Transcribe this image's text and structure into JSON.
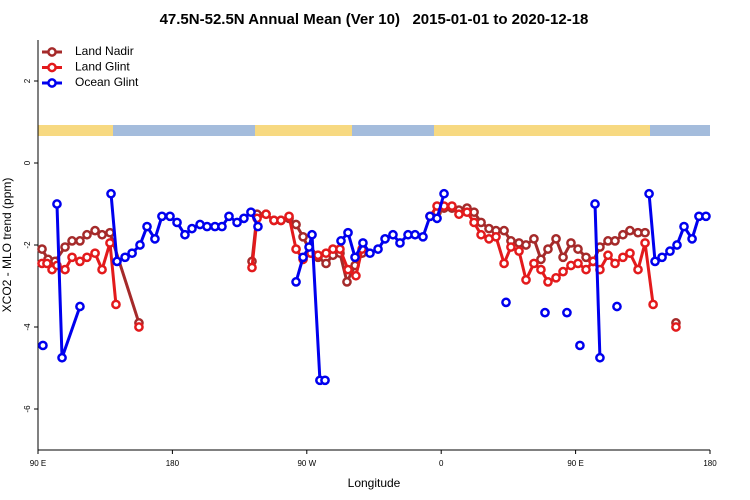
{
  "chart_data": {
    "type": "line",
    "title": "47.5N-52.5N Annual Mean (Ver 10)   2015-01-01 to 2020-12-18",
    "x_label": "Longitude",
    "y_label": "XCO2 - MLO trend (ppm)",
    "xlim": [
      90,
      540
    ],
    "xticks": [
      {
        "value": 90,
        "label": "90 E"
      },
      {
        "value": 180,
        "label": "180"
      },
      {
        "value": 270,
        "label": "90 W"
      },
      {
        "value": 360,
        "label": "0"
      },
      {
        "value": 450,
        "label": "90 E"
      },
      {
        "value": 540,
        "label": "180"
      }
    ],
    "ylim": [
      -7,
      3
    ],
    "yticks": [
      -6,
      -4,
      -2,
      0,
      2
    ],
    "legend": "upper left",
    "series": [
      {
        "name": "Land Nadir",
        "color": "#a52a2a",
        "x": [
          92.7,
          96.7,
          101.4,
          108.1,
          112.8,
          118.1,
          122.8,
          128.2,
          132.9,
          138.2,
          157.6,
          195,
          233.3,
          236.7,
          242.7,
          248.0,
          252.7,
          258.1,
          262.8,
          267.5,
          272.8,
          277.5,
          282.9,
          287.5,
          292.2,
          296.9,
          302.3,
          307.0,
          330,
          357.2,
          361.9,
          367.2,
          371.9,
          377.3,
          382.0,
          386.7,
          392.0,
          396.7,
          402.1,
          406.7,
          412.1,
          416.8,
          422.1,
          426.8,
          431.5,
          436.9,
          441.6,
          446.9,
          451.6,
          457.0,
          461.7,
          466.3,
          471.7,
          476.4,
          481.7,
          486.4,
          491.8,
          496.5,
          507,
          517.2
        ],
        "values": [
          -2.1,
          -2.35,
          -2.4,
          -2.05,
          -1.9,
          -1.9,
          -1.75,
          -1.65,
          -1.75,
          -1.7,
          -3.9,
          null,
          -2.4,
          -1.25,
          -1.25,
          -1.4,
          -1.4,
          -1.35,
          -1.5,
          -1.8,
          -2.2,
          -2.3,
          -2.45,
          -2.25,
          -2.2,
          -2.9,
          -2.5,
          -2.2,
          null,
          -1.2,
          -1.1,
          -1.1,
          -1.15,
          -1.1,
          -1.2,
          -1.45,
          -1.6,
          -1.65,
          -1.65,
          -1.9,
          -1.95,
          -2.0,
          -1.85,
          -2.35,
          -2.1,
          -1.85,
          -2.3,
          -1.95,
          -2.1,
          -2.3,
          -2.4,
          -2.05,
          -1.9,
          -1.9,
          -1.75,
          -1.65,
          -1.7,
          -1.7,
          null,
          -3.9
        ]
      },
      {
        "name": "Land Glint",
        "color": "#e31a1c",
        "x": [
          92.7,
          96.0,
          99.4,
          102.7,
          108.1,
          112.8,
          118.1,
          122.8,
          128.2,
          132.9,
          138.2,
          142.2,
          150,
          157.6,
          195,
          233.3,
          236.7,
          242.7,
          248.0,
          252.7,
          258.1,
          262.8,
          267.5,
          272.8,
          277.5,
          282.9,
          287.5,
          292.2,
          297.6,
          302.9,
          307.0,
          330,
          352.5,
          357.2,
          361.9,
          367.2,
          371.9,
          377.3,
          382.0,
          386.7,
          392.0,
          396.7,
          402.1,
          406.7,
          412.1,
          416.8,
          422.1,
          426.8,
          431.5,
          436.9,
          441.6,
          446.9,
          451.6,
          457.0,
          461.7,
          466.3,
          471.7,
          476.4,
          481.7,
          486.4,
          491.8,
          496.5,
          501.9,
          510,
          517.2
        ],
        "values": [
          -2.45,
          -2.45,
          -2.6,
          -2.5,
          -2.6,
          -2.3,
          -2.4,
          -2.3,
          -2.2,
          -2.6,
          -1.95,
          -3.45,
          null,
          -4.0,
          null,
          -2.55,
          -1.35,
          -1.25,
          -1.4,
          -1.4,
          -1.3,
          -2.1,
          -2.35,
          -2.2,
          -2.25,
          -2.2,
          -2.1,
          -2.1,
          -2.6,
          -2.75,
          -2.1,
          null,
          -1.3,
          -1.05,
          -1.05,
          -1.05,
          -1.25,
          -1.2,
          -1.45,
          -1.75,
          -1.85,
          -1.8,
          -2.45,
          -2.05,
          -2.15,
          -2.85,
          -2.45,
          -2.6,
          -2.9,
          -2.8,
          -2.65,
          -2.5,
          -2.45,
          -2.6,
          -2.4,
          -2.6,
          -2.25,
          -2.45,
          -2.3,
          -2.2,
          -2.6,
          -1.95,
          -3.45,
          null,
          -4.0
        ]
      },
      {
        "name": "Ocean Glint",
        "color": "#0000ee",
        "x": [
          93.3,
          98,
          102.7,
          106.1,
          118.1,
          128,
          138.9,
          142.9,
          148.3,
          153,
          158.3,
          163,
          168.3,
          173,
          178.4,
          183.1,
          188.4,
          193.1,
          198.5,
          203.2,
          208.5,
          213.2,
          217.9,
          223.3,
          227.9,
          232.6,
          237.3,
          250,
          262.8,
          267.5,
          271.5,
          273.5,
          278.8,
          282.2,
          287,
          292.9,
          297.6,
          302.3,
          307.6,
          312.3,
          317.7,
          322.4,
          327.7,
          332.4,
          337.8,
          342.5,
          347.8,
          352.5,
          357.2,
          361.9,
          383,
          403.4,
          416,
          429.5,
          437,
          444.2,
          448,
          452.9,
          458,
          463,
          466.3,
          472,
          477.7,
          488,
          499.2,
          503.2,
          507.9,
          513.2,
          517.9,
          522.6,
          528,
          532.6,
          537.3
        ],
        "values": [
          -4.45,
          null,
          -1.0,
          -4.75,
          -3.5,
          null,
          -0.75,
          -2.4,
          -2.3,
          -2.2,
          -2.0,
          -1.55,
          -1.85,
          -1.3,
          -1.3,
          -1.45,
          -1.75,
          -1.6,
          -1.5,
          -1.55,
          -1.55,
          -1.55,
          -1.3,
          -1.45,
          -1.35,
          -1.2,
          -1.55,
          null,
          -2.9,
          -2.3,
          -2.05,
          -1.75,
          -5.3,
          -5.3,
          null,
          -1.9,
          -1.7,
          -2.3,
          -1.95,
          -2.2,
          -2.1,
          -1.85,
          -1.75,
          -1.95,
          -1.75,
          -1.75,
          -1.8,
          -1.3,
          -1.35,
          -0.75,
          null,
          -3.4,
          null,
          -3.65,
          null,
          -3.65,
          null,
          -4.45,
          null,
          -1.0,
          -4.75,
          null,
          -3.5,
          null,
          -0.75,
          -2.4,
          -2.3,
          -2.15,
          -2.0,
          -1.55,
          -1.85,
          -1.3,
          -1.3
        ]
      }
    ]
  }
}
